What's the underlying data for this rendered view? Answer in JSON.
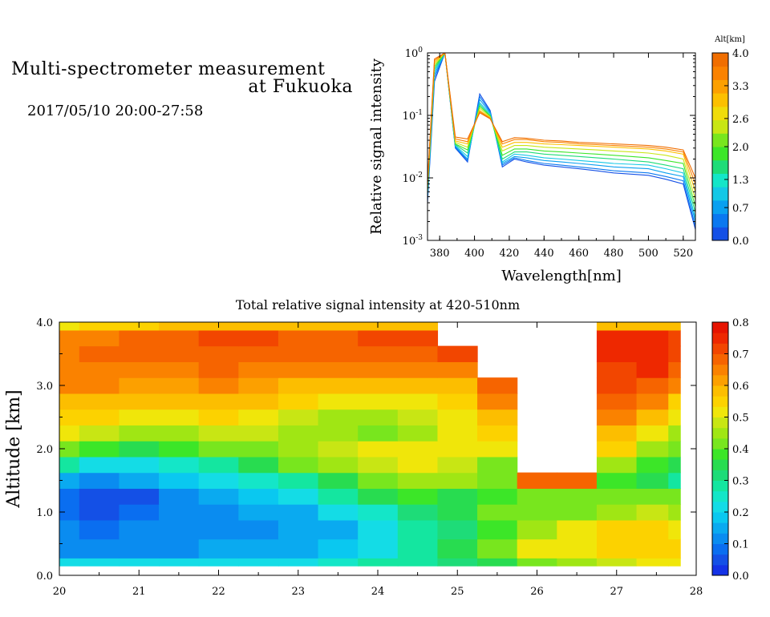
{
  "header": {
    "title_line1": "Multi-spectrometer measurement",
    "title_line2": "at Fukuoka",
    "datetime": "2017/05/10 20:00-27:58"
  },
  "chart_data": [
    {
      "type": "line",
      "xlabel": "Wavelength[nm]",
      "ylabel": "Relative signal intensity",
      "xlim": [
        373,
        527
      ],
      "ylim": [
        0.001,
        1
      ],
      "yscale": "log",
      "x_ticks": [
        380,
        400,
        420,
        440,
        460,
        480,
        500,
        520
      ],
      "y_ticks": [
        {
          "value": 0.001,
          "base": "10",
          "exp": "-3"
        },
        {
          "value": 0.01,
          "base": "10",
          "exp": "-2"
        },
        {
          "value": 0.1,
          "base": "10",
          "exp": "-1"
        },
        {
          "value": 1,
          "base": "10",
          "exp": "0"
        }
      ],
      "x": [
        373,
        377,
        383,
        389,
        396,
        403,
        409,
        416,
        423,
        430,
        440,
        450,
        460,
        470,
        480,
        490,
        500,
        510,
        520,
        527
      ],
      "colorbar": {
        "label": "Alt[km]",
        "range": [
          0,
          4
        ],
        "tick_labels": [
          "0.0",
          "0.7",
          "1.3",
          "2.0",
          "2.6",
          "3.3",
          "4.0"
        ],
        "colors": [
          "#1450e6",
          "#0a78f0",
          "#0aa0f0",
          "#14c8e6",
          "#14e6c8",
          "#1edc78",
          "#3ce628",
          "#78e61e",
          "#c8e614",
          "#f0dc0a",
          "#fcc000",
          "#fca000",
          "#fa8200",
          "#f06e00"
        ]
      },
      "series": [
        {
          "color": "#1450e6",
          "values": [
            0.004,
            0.35,
            1.0,
            0.03,
            0.018,
            0.22,
            0.12,
            0.015,
            0.02,
            0.018,
            0.016,
            0.015,
            0.014,
            0.013,
            0.012,
            0.0115,
            0.011,
            0.0095,
            0.008,
            0.0015
          ]
        },
        {
          "color": "#0a78f0",
          "values": [
            0.0045,
            0.4,
            1.0,
            0.031,
            0.019,
            0.2,
            0.115,
            0.016,
            0.021,
            0.019,
            0.017,
            0.016,
            0.015,
            0.014,
            0.013,
            0.0125,
            0.012,
            0.0105,
            0.009,
            0.0017
          ]
        },
        {
          "color": "#0aa0f0",
          "values": [
            0.005,
            0.45,
            1.0,
            0.032,
            0.02,
            0.18,
            0.11,
            0.017,
            0.022,
            0.021,
            0.019,
            0.018,
            0.017,
            0.016,
            0.015,
            0.0145,
            0.014,
            0.012,
            0.0105,
            0.002
          ]
        },
        {
          "color": "#14c8e6",
          "values": [
            0.0055,
            0.5,
            1.0,
            0.033,
            0.022,
            0.16,
            0.105,
            0.018,
            0.024,
            0.023,
            0.021,
            0.02,
            0.019,
            0.018,
            0.017,
            0.0165,
            0.016,
            0.014,
            0.012,
            0.0023
          ]
        },
        {
          "color": "#1edc78",
          "values": [
            0.006,
            0.55,
            1.0,
            0.034,
            0.025,
            0.15,
            0.1,
            0.02,
            0.026,
            0.026,
            0.024,
            0.023,
            0.022,
            0.021,
            0.02,
            0.019,
            0.018,
            0.016,
            0.014,
            0.0028
          ]
        },
        {
          "color": "#3ce628",
          "values": [
            0.0065,
            0.6,
            1.0,
            0.035,
            0.028,
            0.14,
            0.098,
            0.023,
            0.029,
            0.029,
            0.027,
            0.026,
            0.025,
            0.024,
            0.023,
            0.022,
            0.021,
            0.019,
            0.017,
            0.0035
          ]
        },
        {
          "color": "#c8e614",
          "values": [
            0.007,
            0.65,
            1.0,
            0.037,
            0.031,
            0.13,
            0.095,
            0.027,
            0.033,
            0.033,
            0.031,
            0.03,
            0.029,
            0.028,
            0.027,
            0.026,
            0.025,
            0.023,
            0.02,
            0.0045
          ]
        },
        {
          "color": "#fcc000",
          "values": [
            0.0075,
            0.7,
            1.0,
            0.039,
            0.035,
            0.12,
            0.092,
            0.031,
            0.037,
            0.037,
            0.035,
            0.034,
            0.033,
            0.032,
            0.031,
            0.03,
            0.029,
            0.027,
            0.024,
            0.006
          ]
        },
        {
          "color": "#fa8200",
          "values": [
            0.008,
            0.75,
            1.0,
            0.042,
            0.038,
            0.115,
            0.09,
            0.035,
            0.041,
            0.041,
            0.038,
            0.037,
            0.035,
            0.034,
            0.033,
            0.032,
            0.031,
            0.029,
            0.026,
            0.008
          ]
        },
        {
          "color": "#f06e00",
          "values": [
            0.0085,
            0.8,
            1.0,
            0.045,
            0.042,
            0.11,
            0.088,
            0.038,
            0.044,
            0.043,
            0.04,
            0.039,
            0.037,
            0.036,
            0.035,
            0.034,
            0.033,
            0.031,
            0.028,
            0.01
          ]
        }
      ]
    },
    {
      "type": "heatmap",
      "title": "Total relative signal intensity at 420-510nm",
      "ylabel": "Altitude [km]",
      "xlim": [
        20,
        28
      ],
      "ylim": [
        0,
        4
      ],
      "x_ticks": [
        "20",
        "21",
        "22",
        "23",
        "24",
        "25",
        "26",
        "27",
        "28"
      ],
      "y_ticks": [
        "0.0",
        "1.0",
        "2.0",
        "3.0",
        "4.0"
      ],
      "colorbar": {
        "range": [
          0,
          0.8
        ],
        "tick_labels": [
          "0.0",
          "0.1",
          "0.2",
          "0.3",
          "0.4",
          "0.5",
          "0.6",
          "0.7",
          "0.8"
        ],
        "colors": [
          "#1432e6",
          "#1450e6",
          "#0a6ef0",
          "#0a8cf0",
          "#0aaaf0",
          "#0ac8f0",
          "#14dce6",
          "#14e6c8",
          "#14e6a0",
          "#1edc78",
          "#28dc50",
          "#3ce628",
          "#78e61e",
          "#a0e614",
          "#c8e614",
          "#f0e60a",
          "#fcd200",
          "#fcbe00",
          "#fca000",
          "#fa8200",
          "#f66400",
          "#f24600",
          "#ee2800",
          "#e61400"
        ]
      },
      "data_bounds": {
        "time": [
          20.0,
          27.8
        ],
        "altitude": [
          0.15,
          4.0
        ]
      },
      "times": [
        20.0,
        20.5,
        21.0,
        21.5,
        22.0,
        22.5,
        23.0,
        23.5,
        24.0,
        24.5,
        25.0,
        25.5,
        26.0,
        26.5,
        27.0,
        27.5,
        27.8
      ],
      "altitudes": [
        0.15,
        0.4,
        0.75,
        1.0,
        1.25,
        1.5,
        1.75,
        2.0,
        2.25,
        2.5,
        2.75,
        3.0,
        3.25,
        3.5,
        3.75,
        4.0
      ],
      "values": [
        [
          0.22,
          0.22,
          0.22,
          0.22,
          0.22,
          0.22,
          0.23,
          0.24,
          0.27,
          0.3,
          0.33,
          0.36,
          0.4,
          0.44,
          0.48,
          0.5,
          0.5
        ],
        [
          0.13,
          0.12,
          0.13,
          0.13,
          0.14,
          0.15,
          0.16,
          0.18,
          0.22,
          0.28,
          0.34,
          0.4,
          0.5,
          0.52,
          0.55,
          0.55,
          0.54
        ],
        [
          0.1,
          0.09,
          0.1,
          0.11,
          0.12,
          0.13,
          0.14,
          0.16,
          0.2,
          0.27,
          0.33,
          0.38,
          0.46,
          0.5,
          0.55,
          0.56,
          0.52
        ],
        [
          0.08,
          0.06,
          0.08,
          0.1,
          0.12,
          0.14,
          0.16,
          0.2,
          0.26,
          0.32,
          0.36,
          0.4,
          0.42,
          0.4,
          0.45,
          0.48,
          0.45
        ],
        [
          0.07,
          0.05,
          0.06,
          0.1,
          0.14,
          0.17,
          0.22,
          0.28,
          0.34,
          0.38,
          0.36,
          0.38,
          0.4,
          0.4,
          0.42,
          0.42,
          0.4
        ],
        [
          0.14,
          0.12,
          0.14,
          0.18,
          0.21,
          0.24,
          0.3,
          0.36,
          0.42,
          0.45,
          0.44,
          0.4,
          0.7,
          0.7,
          0.38,
          0.35,
          0.3
        ],
        [
          0.3,
          0.22,
          0.22,
          0.26,
          0.3,
          0.34,
          0.4,
          0.44,
          0.48,
          0.5,
          0.48,
          0.42,
          null,
          null,
          0.44,
          0.38,
          0.34
        ],
        [
          0.42,
          0.38,
          0.36,
          0.38,
          0.4,
          0.42,
          0.45,
          0.48,
          0.5,
          0.52,
          0.5,
          0.5,
          null,
          null,
          0.55,
          0.44,
          0.4
        ],
        [
          0.52,
          0.48,
          0.46,
          0.46,
          0.48,
          0.48,
          0.46,
          0.44,
          0.42,
          0.46,
          0.5,
          0.55,
          null,
          null,
          0.6,
          0.5,
          0.45
        ],
        [
          0.56,
          0.54,
          0.52,
          0.52,
          0.54,
          0.52,
          0.48,
          0.45,
          0.44,
          0.48,
          0.52,
          0.6,
          null,
          null,
          0.66,
          0.58,
          0.5
        ],
        [
          0.6,
          0.6,
          0.58,
          0.58,
          0.6,
          0.58,
          0.55,
          0.52,
          0.5,
          0.52,
          0.56,
          0.66,
          null,
          null,
          0.7,
          0.64,
          0.56
        ],
        [
          0.64,
          0.64,
          0.62,
          0.62,
          0.64,
          0.62,
          0.6,
          0.6,
          0.58,
          0.58,
          0.6,
          0.7,
          null,
          null,
          0.72,
          0.7,
          0.64
        ],
        [
          0.66,
          0.66,
          0.66,
          0.66,
          0.68,
          0.66,
          0.64,
          0.64,
          0.64,
          0.64,
          0.66,
          null,
          null,
          null,
          0.72,
          0.74,
          0.7
        ],
        [
          0.66,
          0.68,
          0.68,
          0.7,
          0.7,
          0.7,
          0.68,
          0.68,
          0.68,
          0.7,
          0.72,
          null,
          null,
          null,
          0.74,
          0.74,
          0.72
        ],
        [
          0.64,
          0.66,
          0.68,
          0.7,
          0.72,
          0.72,
          0.7,
          0.7,
          0.72,
          0.72,
          null,
          null,
          null,
          null,
          0.74,
          0.74,
          0.72
        ],
        [
          0.52,
          0.55,
          0.56,
          0.58,
          0.58,
          0.6,
          0.6,
          0.6,
          0.6,
          0.6,
          null,
          null,
          null,
          null,
          0.6,
          0.6,
          0.6
        ]
      ]
    }
  ]
}
